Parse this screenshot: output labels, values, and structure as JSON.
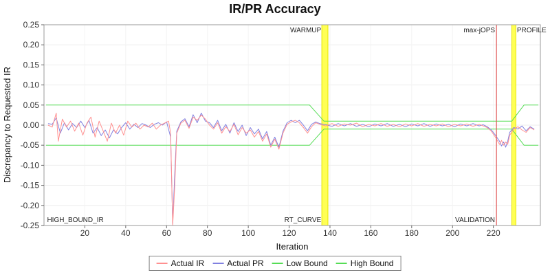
{
  "chart_data": {
    "type": "line",
    "title": "IR/PR Accuracy",
    "xlabel": "Iteration",
    "ylabel": "Discrepancy to Requested IR",
    "xlim": [
      0,
      243
    ],
    "ylim": [
      -0.25,
      0.25
    ],
    "x_ticks": [
      20,
      40,
      60,
      80,
      100,
      120,
      140,
      160,
      180,
      200,
      220
    ],
    "y_ticks": [
      "0.25",
      "0.20",
      "0.15",
      "0.10",
      "0.05",
      "0.00",
      "-0.05",
      "-0.10",
      "-0.15",
      "-0.20",
      "-0.25"
    ],
    "grid": "faint",
    "legend_position": "bottom",
    "series": [
      {
        "name": "Actual IR",
        "color": "#ff9090",
        "points": [
          [
            2,
            0
          ],
          [
            4,
            -0.005
          ],
          [
            6,
            0.03
          ],
          [
            7,
            -0.04
          ],
          [
            9,
            0.015
          ],
          [
            11,
            -0.005
          ],
          [
            13,
            0.01
          ],
          [
            15,
            -0.015
          ],
          [
            17,
            0.005
          ],
          [
            19,
            -0.025
          ],
          [
            21,
            0.005
          ],
          [
            23,
            0.02
          ],
          [
            25,
            -0.03
          ],
          [
            27,
            0.01
          ],
          [
            29,
            -0.015
          ],
          [
            31,
            -0.04
          ],
          [
            33,
            0.005
          ],
          [
            35,
            -0.02
          ],
          [
            37,
            0
          ],
          [
            39,
            -0.025
          ],
          [
            41,
            0.01
          ],
          [
            43,
            -0.005
          ],
          [
            45,
            0.005
          ],
          [
            47,
            -0.01
          ],
          [
            49,
            0
          ],
          [
            51,
            -0.005
          ],
          [
            53,
            0.005
          ],
          [
            55,
            -0.01
          ],
          [
            57,
            0
          ],
          [
            59,
            0.005
          ],
          [
            61,
            0.01
          ],
          [
            62,
            -0.02
          ],
          [
            63,
            -0.25
          ],
          [
            64,
            -0.15
          ],
          [
            65,
            -0.02
          ],
          [
            67,
            0.005
          ],
          [
            69,
            0.012
          ],
          [
            71,
            -0.008
          ],
          [
            73,
            0.02
          ],
          [
            75,
            0.012
          ],
          [
            77,
            0.025
          ],
          [
            79,
            0.015
          ],
          [
            81,
            0
          ],
          [
            83,
            -0.01
          ],
          [
            85,
            0.006
          ],
          [
            87,
            -0.02
          ],
          [
            89,
            -0.004
          ],
          [
            91,
            -0.016
          ],
          [
            93,
            0.002
          ],
          [
            95,
            -0.024
          ],
          [
            97,
            -0.006
          ],
          [
            99,
            -0.02
          ],
          [
            101,
            -0.012
          ],
          [
            103,
            -0.03
          ],
          [
            105,
            -0.016
          ],
          [
            107,
            -0.04
          ],
          [
            109,
            -0.022
          ],
          [
            111,
            -0.055
          ],
          [
            113,
            -0.035
          ],
          [
            115,
            -0.06
          ],
          [
            117,
            -0.02
          ],
          [
            119,
            0.002
          ],
          [
            121,
            0.008
          ],
          [
            123,
            0.012
          ],
          [
            125,
            0.006
          ],
          [
            127,
            -0.006
          ],
          [
            129,
            -0.02
          ],
          [
            131,
            -0.004
          ],
          [
            133,
            0.006
          ],
          [
            135,
            0.002
          ],
          [
            138,
            -0.002
          ],
          [
            141,
            0.004
          ],
          [
            144,
            -0.003
          ],
          [
            147,
            0.003
          ],
          [
            150,
            0
          ],
          [
            153,
            0.005
          ],
          [
            156,
            -0.004
          ],
          [
            159,
            0.002
          ],
          [
            162,
            -0.002
          ],
          [
            165,
            0.004
          ],
          [
            168,
            -0.003
          ],
          [
            171,
            0.002
          ],
          [
            174,
            -0.004
          ],
          [
            177,
            0.003
          ],
          [
            180,
            -0.002
          ],
          [
            183,
            0.004
          ],
          [
            186,
            -0.003
          ],
          [
            189,
            0.002
          ],
          [
            192,
            -0.002
          ],
          [
            195,
            0.003
          ],
          [
            198,
            -0.004
          ],
          [
            201,
            0.002
          ],
          [
            204,
            -0.002
          ],
          [
            207,
            0.003
          ],
          [
            210,
            -0.003
          ],
          [
            213,
            0.002
          ],
          [
            215,
            -0.002
          ],
          [
            217,
            -0.006
          ],
          [
            219,
            -0.015
          ],
          [
            221,
            -0.03
          ],
          [
            223,
            -0.048
          ],
          [
            224,
            -0.038
          ],
          [
            225,
            -0.05
          ],
          [
            226,
            -0.042
          ],
          [
            227,
            -0.048
          ],
          [
            228,
            -0.025
          ],
          [
            230,
            -0.01
          ],
          [
            232,
            -0.004
          ],
          [
            234,
            -0.012
          ],
          [
            236,
            -0.018
          ],
          [
            238,
            -0.006
          ],
          [
            240,
            -0.012
          ]
        ]
      },
      {
        "name": "Actual PR",
        "color": "#8080e0",
        "points": [
          [
            2,
            0.004
          ],
          [
            4,
            0.002
          ],
          [
            6,
            0.018
          ],
          [
            8,
            -0.02
          ],
          [
            10,
            0.006
          ],
          [
            12,
            -0.012
          ],
          [
            14,
            0.004
          ],
          [
            16,
            -0.006
          ],
          [
            18,
            0.01
          ],
          [
            20,
            -0.006
          ],
          [
            22,
            0.012
          ],
          [
            24,
            -0.02
          ],
          [
            26,
            -0.006
          ],
          [
            28,
            -0.026
          ],
          [
            30,
            -0.012
          ],
          [
            32,
            -0.032
          ],
          [
            34,
            -0.012
          ],
          [
            36,
            -0.022
          ],
          [
            38,
            -0.006
          ],
          [
            40,
            0.006
          ],
          [
            42,
            -0.01
          ],
          [
            44,
            0.002
          ],
          [
            46,
            -0.006
          ],
          [
            48,
            0.004
          ],
          [
            50,
            0
          ],
          [
            52,
            -0.006
          ],
          [
            54,
            0.002
          ],
          [
            56,
            0.006
          ],
          [
            58,
            0
          ],
          [
            60,
            0.008
          ],
          [
            62,
            -0.03
          ],
          [
            63,
            -0.245
          ],
          [
            64,
            -0.12
          ],
          [
            65,
            -0.015
          ],
          [
            67,
            0.008
          ],
          [
            69,
            0.016
          ],
          [
            71,
            -0.004
          ],
          [
            73,
            0.026
          ],
          [
            75,
            0.006
          ],
          [
            77,
            0.03
          ],
          [
            79,
            0.01
          ],
          [
            81,
            0.006
          ],
          [
            83,
            -0.006
          ],
          [
            85,
            0.012
          ],
          [
            87,
            -0.014
          ],
          [
            89,
            0.002
          ],
          [
            91,
            -0.02
          ],
          [
            93,
            0.006
          ],
          [
            95,
            -0.016
          ],
          [
            97,
            0
          ],
          [
            99,
            -0.026
          ],
          [
            101,
            -0.006
          ],
          [
            103,
            -0.022
          ],
          [
            105,
            -0.01
          ],
          [
            107,
            -0.034
          ],
          [
            109,
            -0.016
          ],
          [
            111,
            -0.05
          ],
          [
            113,
            -0.03
          ],
          [
            115,
            -0.055
          ],
          [
            117,
            -0.015
          ],
          [
            119,
            0.006
          ],
          [
            121,
            0.012
          ],
          [
            123,
            0.006
          ],
          [
            125,
            0.012
          ],
          [
            127,
            0
          ],
          [
            129,
            -0.014
          ],
          [
            131,
            0.002
          ],
          [
            133,
            0.008
          ],
          [
            135,
            0.004
          ],
          [
            138,
            0.001
          ],
          [
            141,
            -0.003
          ],
          [
            144,
            0.004
          ],
          [
            147,
            -0.002
          ],
          [
            150,
            0.004
          ],
          [
            153,
            -0.003
          ],
          [
            156,
            0.002
          ],
          [
            159,
            -0.004
          ],
          [
            162,
            0.003
          ],
          [
            165,
            -0.002
          ],
          [
            168,
            0.004
          ],
          [
            171,
            -0.003
          ],
          [
            174,
            0.002
          ],
          [
            177,
            -0.004
          ],
          [
            180,
            0.003
          ],
          [
            183,
            -0.002
          ],
          [
            186,
            0.004
          ],
          [
            189,
            -0.003
          ],
          [
            192,
            0.003
          ],
          [
            195,
            -0.002
          ],
          [
            198,
            0.002
          ],
          [
            201,
            -0.004
          ],
          [
            204,
            0.003
          ],
          [
            207,
            -0.002
          ],
          [
            210,
            0.004
          ],
          [
            213,
            -0.002
          ],
          [
            215,
            0.001
          ],
          [
            217,
            -0.004
          ],
          [
            219,
            -0.012
          ],
          [
            221,
            -0.025
          ],
          [
            223,
            -0.04
          ],
          [
            224,
            -0.052
          ],
          [
            225,
            -0.042
          ],
          [
            226,
            -0.055
          ],
          [
            227,
            -0.04
          ],
          [
            228,
            -0.018
          ],
          [
            230,
            -0.006
          ],
          [
            232,
            -0.01
          ],
          [
            234,
            -0.002
          ],
          [
            236,
            -0.014
          ],
          [
            238,
            -0.004
          ],
          [
            240,
            -0.01
          ]
        ]
      },
      {
        "name": "Low Bound",
        "color": "#55dd55",
        "points": [
          [
            1,
            -0.05
          ],
          [
            130,
            -0.05
          ],
          [
            137,
            -0.01
          ],
          [
            229,
            -0.01
          ],
          [
            235,
            -0.05
          ],
          [
            242,
            -0.05
          ]
        ]
      },
      {
        "name": "High Bound",
        "color": "#55dd55",
        "points": [
          [
            1,
            0.05
          ],
          [
            130,
            0.05
          ],
          [
            137,
            0.01
          ],
          [
            229,
            0.01
          ],
          [
            235,
            0.05
          ],
          [
            242,
            0.05
          ]
        ]
      }
    ],
    "regions": [
      {
        "name": "warmup-band",
        "x0": 136,
        "x1": 139,
        "color": "#ffff55",
        "edge_color": "#e6e600"
      },
      {
        "name": "profile-band",
        "x0": 229,
        "x1": 231,
        "color": "#ffff55",
        "edge_color": "#e6e600"
      }
    ],
    "vlines": [
      {
        "name": "validation",
        "x": 221.5,
        "color": "#e05555"
      }
    ],
    "annotations": [
      {
        "text": "WARMUP",
        "x": 135.7,
        "anchor": "end",
        "vpos": "top"
      },
      {
        "text": "max-jOPS",
        "x": 220.8,
        "anchor": "end",
        "vpos": "top"
      },
      {
        "text": "PROFILE",
        "x": 231.5,
        "anchor": "start",
        "vpos": "top"
      },
      {
        "text": "HIGH_BOUND_IR",
        "x": 1.5,
        "anchor": "start",
        "vpos": "bottom"
      },
      {
        "text": "RT_CURVE",
        "x": 135.7,
        "anchor": "end",
        "vpos": "bottom"
      },
      {
        "text": "VALIDATION",
        "x": 220.8,
        "anchor": "end",
        "vpos": "bottom"
      }
    ]
  }
}
